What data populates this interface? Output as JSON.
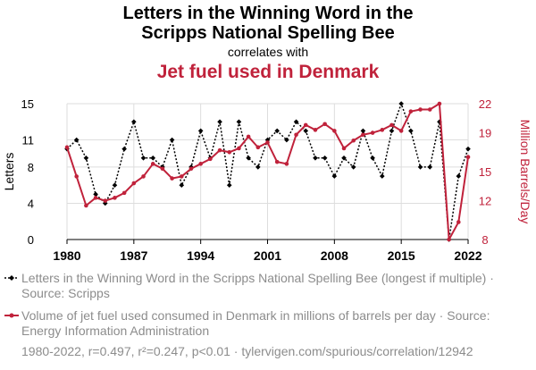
{
  "chart_data": {
    "type": "line",
    "title_line1": "Letters in the Winning Word in the",
    "title_line2": "Scripps National Spelling Bee",
    "correlates_with": "correlates with",
    "subtitle": "Jet fuel used in Denmark",
    "x": [
      1980,
      1981,
      1982,
      1983,
      1984,
      1985,
      1986,
      1987,
      1988,
      1989,
      1990,
      1991,
      1992,
      1993,
      1994,
      1995,
      1996,
      1997,
      1998,
      1999,
      2000,
      2001,
      2002,
      2003,
      2004,
      2005,
      2006,
      2007,
      2008,
      2009,
      2010,
      2011,
      2012,
      2013,
      2014,
      2015,
      2016,
      2017,
      2018,
      2019,
      2020,
      2021,
      2022
    ],
    "xlim": [
      1980,
      2022
    ],
    "xticks": [
      "1980",
      "1987",
      "1994",
      "2001",
      "2008",
      "2015",
      "2022"
    ],
    "series": [
      {
        "name": "Letters in the Winning Word in the Scripps National Spelling Bee (longest if multiple)",
        "axis": "left",
        "color": "#000000",
        "style": "dotted",
        "marker": "diamond",
        "values": [
          10,
          11,
          9,
          5,
          4,
          6,
          10,
          13,
          9,
          9,
          8,
          11,
          6,
          8,
          12,
          9,
          13,
          6,
          13,
          9,
          8,
          11,
          12,
          11,
          13,
          12,
          9,
          9,
          7,
          9,
          8,
          12,
          9,
          7,
          12,
          15,
          12,
          8,
          8,
          13,
          0,
          7,
          10
        ]
      },
      {
        "name": "Volume of jet fuel used consumed in Denmark in millions of barrels per day",
        "axis": "right",
        "color": "#c0223b",
        "style": "solid",
        "marker": "circle",
        "values": [
          17.5,
          14.5,
          11.5,
          12.3,
          12.0,
          12.3,
          12.8,
          13.8,
          14.5,
          15.8,
          15.3,
          14.3,
          14.5,
          15.3,
          15.8,
          16.3,
          17.2,
          17.0,
          17.4,
          18.6,
          17.5,
          18.0,
          16.0,
          15.8,
          18.8,
          19.8,
          19.3,
          19.9,
          19.2,
          17.4,
          18.2,
          18.8,
          19.0,
          19.3,
          19.8,
          19.2,
          21.2,
          21.4,
          21.4,
          22.0,
          8.0,
          9.8,
          16.5
        ]
      }
    ],
    "ylabel_left": "Letters",
    "ylim_left": [
      0,
      15
    ],
    "yticks_left": [
      "0",
      "4",
      "8",
      "11",
      "15"
    ],
    "ylabel_right": "Million Barrels/Day",
    "ylim_right": [
      8,
      22
    ],
    "yticks_right": [
      "8",
      "12",
      "15",
      "19",
      "22"
    ],
    "legend_series1": "Letters in the Winning Word in the Scripps National Spelling Bee (longest if multiple) · Source: Scripps",
    "legend_series2": "Volume of jet fuel used consumed in Denmark in millions of barrels per day · Source: Energy Information Administration",
    "footer": "1980-2022, r=0.497, r²=0.247, p<0.01 · tylervigen.com/spurious/correlation/12942"
  },
  "colors": {
    "left_series": "#000000",
    "right_series": "#c0223b",
    "grid": "#dddddd",
    "muted_text": "#8c8c8c"
  }
}
